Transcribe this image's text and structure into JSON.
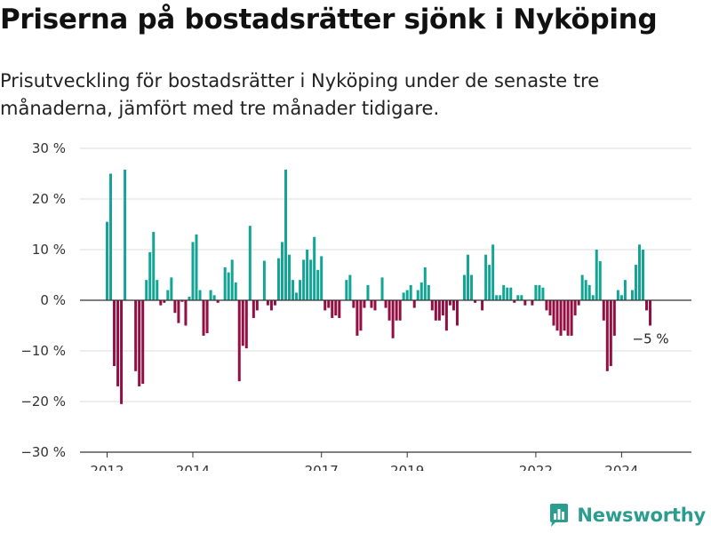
{
  "title": "Priserna på bostadsrätter sjönk i Nyköping",
  "subtitle": "Prisutveckling för bostadsrätter i Nyköping under de senaste tre månaderna, jämfört med tre månader tidigare.",
  "colors": {
    "positive": "#12a595",
    "negative": "#930e42",
    "grid": "#dcdcdc",
    "axis": "#333333",
    "brand": "#2a9d8f"
  },
  "brand": {
    "name": "Newsworthy",
    "icon": "bar-chart-logo-icon"
  },
  "chart_data": {
    "type": "bar",
    "ylim": [
      -30,
      30
    ],
    "yticks": [
      30,
      20,
      10,
      0,
      -10,
      -20,
      -30
    ],
    "ytick_labels": [
      "30 %",
      "20 %",
      "10 %",
      "0 %",
      "−10 %",
      "−20 %",
      "−30 %"
    ],
    "xticks": [
      {
        "label": "2012",
        "month_index": 0
      },
      {
        "label": "2014",
        "month_index": 24
      },
      {
        "label": "2017",
        "month_index": 60
      },
      {
        "label": "2019",
        "month_index": 84
      },
      {
        "label": "2022",
        "month_index": 120
      },
      {
        "label": "2024",
        "month_index": 144
      }
    ],
    "x_start": "2012-01",
    "grid": true,
    "legend": "none",
    "annotation": {
      "text": "−5 %"
    },
    "values": [
      15.5,
      25,
      -13,
      -17,
      -20.5,
      25.8,
      0,
      0,
      -14,
      -17,
      -16.5,
      4,
      9.5,
      13.5,
      4,
      -1,
      -0.5,
      2,
      4.5,
      -2.5,
      -4.5,
      -0.3,
      -5,
      0.7,
      11.5,
      13,
      2,
      -7,
      -6.5,
      2,
      1,
      -0.5,
      0,
      6.5,
      5.5,
      8,
      3.5,
      -16,
      -9,
      -9.5,
      14.7,
      -3.5,
      -2,
      0,
      7.8,
      -1,
      -2,
      -1,
      8.3,
      11.5,
      25.8,
      9,
      4,
      1.5,
      4,
      8,
      10,
      8,
      12.5,
      6,
      8.7,
      -2,
      -1.5,
      -3.5,
      -3,
      -3.5,
      0,
      4,
      5,
      -1.5,
      -7,
      -6,
      -1.5,
      3,
      -1.5,
      -2,
      0,
      4.5,
      -1.5,
      -4,
      -7.5,
      -4,
      -4,
      1.5,
      2,
      3,
      -1.5,
      2,
      3.5,
      6.5,
      3,
      -2,
      -4,
      -4,
      -3,
      -6,
      -1,
      -2,
      -5,
      0,
      5,
      9,
      5,
      -0.5,
      0,
      -2,
      9,
      7,
      11,
      1,
      1,
      3,
      2.5,
      2.5,
      -0.5,
      1,
      1,
      -1,
      0,
      -1,
      3,
      3,
      2.5,
      -2,
      -3,
      -5,
      -6,
      -7,
      -6,
      -7,
      -7,
      -3,
      -1,
      5,
      4,
      3,
      1,
      10,
      7.7,
      -4,
      -14,
      -13,
      -7,
      2,
      1,
      4,
      0,
      2,
      7,
      11,
      10,
      -2,
      -5
    ]
  }
}
